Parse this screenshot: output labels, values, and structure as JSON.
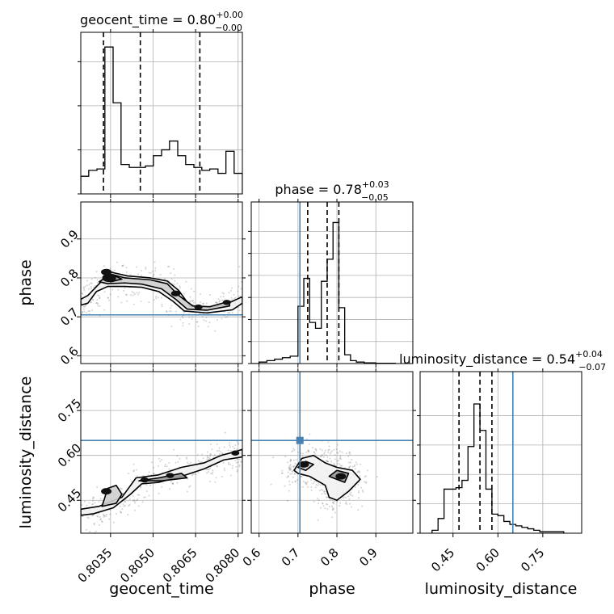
{
  "chart_data": {
    "type": "corner",
    "parameters": [
      "geocent_time",
      "phase",
      "luminosity_distance"
    ],
    "truth_color": "#4682b4",
    "truths": {
      "phase": 0.705,
      "luminosity_distance": 0.65
    },
    "axis_labels": [
      "geocent_time",
      "phase",
      "luminosity_distance"
    ],
    "titles": [
      {
        "base": "geocent_time = 0.80",
        "sup": "+0.00",
        "sub": "−0.00"
      },
      {
        "base": "phase = 0.78",
        "sup": "+0.03",
        "sub": "−0.05"
      },
      {
        "base": "luminosity_distance = 0.54",
        "sup": "+0.04",
        "sub": "−0.07"
      }
    ],
    "ranges": {
      "geocent_time": [
        0.80245,
        0.80815
      ],
      "phase": [
        0.58,
        0.995
      ],
      "luminosity_distance": [
        0.34,
        0.88
      ]
    },
    "ticks": {
      "geocent_time": {
        "values": [
          0.8035,
          0.805,
          0.8065,
          0.808
        ],
        "labels": [
          "0.8035",
          "0.8050",
          "0.8065",
          "0.8080"
        ]
      },
      "phase": {
        "values": [
          0.6,
          0.7,
          0.8,
          0.9
        ],
        "labels": [
          "0.6",
          "0.7",
          "0.8",
          "0.9"
        ]
      },
      "luminosity_distance": {
        "values": [
          0.45,
          0.6,
          0.75
        ],
        "labels": [
          "0.45",
          "0.60",
          "0.75"
        ]
      }
    },
    "quantiles": {
      "geocent_time": [
        0.80325,
        0.80455,
        0.80665
      ],
      "phase": [
        0.725,
        0.775,
        0.805
      ],
      "luminosity_distance": [
        0.47,
        0.54,
        0.58
      ]
    },
    "histograms": {
      "geocent_time": {
        "edges": [
          0.80245,
          0.80273,
          0.80302,
          0.8033,
          0.80359,
          0.80387,
          0.80416,
          0.80444,
          0.80473,
          0.80501,
          0.8053,
          0.80558,
          0.80587,
          0.80615,
          0.80644,
          0.80672,
          0.807,
          0.80729,
          0.80757,
          0.80786,
          0.80815
        ],
        "counts": [
          0.12,
          0.16,
          0.17,
          1.0,
          0.62,
          0.2,
          0.18,
          0.18,
          0.19,
          0.26,
          0.3,
          0.36,
          0.26,
          0.2,
          0.18,
          0.16,
          0.17,
          0.14,
          0.29,
          0.14
        ],
        "yticks": [
          0.0,
          0.3,
          0.6,
          0.9
        ]
      },
      "phase": {
        "edges": [
          0.58,
          0.6,
          0.62,
          0.64,
          0.66,
          0.68,
          0.7,
          0.715,
          0.73,
          0.745,
          0.76,
          0.775,
          0.79,
          0.805,
          0.82,
          0.835,
          0.85,
          0.87,
          0.9,
          0.95
        ],
        "counts": [
          0.0,
          0.01,
          0.02,
          0.03,
          0.04,
          0.05,
          0.39,
          0.58,
          0.28,
          0.24,
          0.56,
          0.71,
          0.96,
          0.38,
          0.06,
          0.02,
          0.01,
          0.005,
          0.002
        ],
        "yticks": [
          0.0,
          0.15,
          0.3,
          0.45,
          0.6,
          0.75,
          0.9
        ]
      },
      "luminosity_distance": {
        "edges": [
          0.38,
          0.4,
          0.42,
          0.44,
          0.46,
          0.48,
          0.5,
          0.52,
          0.54,
          0.56,
          0.58,
          0.6,
          0.62,
          0.64,
          0.66,
          0.68,
          0.7,
          0.72,
          0.74,
          0.76,
          0.78,
          0.82
        ],
        "counts": [
          0.02,
          0.1,
          0.3,
          0.3,
          0.31,
          0.36,
          0.59,
          0.88,
          0.7,
          0.3,
          0.13,
          0.12,
          0.08,
          0.06,
          0.05,
          0.04,
          0.03,
          0.02,
          0.01,
          0.01,
          0.01
        ],
        "yticks": [
          0.0,
          0.2,
          0.4,
          0.6,
          0.8
        ]
      }
    },
    "contours": [
      {
        "x": "geocent_time",
        "y": "phase",
        "levels": [
          [
            [
              0.80245,
              0.745
            ],
            [
              0.8027,
              0.755
            ],
            [
              0.8031,
              0.785
            ],
            [
              0.8035,
              0.815
            ],
            [
              0.8041,
              0.805
            ],
            [
              0.8049,
              0.8
            ],
            [
              0.8055,
              0.792
            ],
            [
              0.8059,
              0.768
            ],
            [
              0.8063,
              0.728
            ],
            [
              0.8068,
              0.723
            ],
            [
              0.8075,
              0.73
            ],
            [
              0.8081,
              0.75
            ],
            [
              0.80815,
              0.75
            ],
            [
              0.80815,
              0.735
            ],
            [
              0.8078,
              0.718
            ],
            [
              0.8069,
              0.71
            ],
            [
              0.8061,
              0.715
            ],
            [
              0.8057,
              0.74
            ],
            [
              0.8052,
              0.765
            ],
            [
              0.8046,
              0.776
            ],
            [
              0.804,
              0.778
            ],
            [
              0.8034,
              0.778
            ],
            [
              0.803,
              0.765
            ],
            [
              0.8027,
              0.735
            ],
            [
              0.80245,
              0.73
            ]
          ],
          [
            [
              0.8031,
              0.79
            ],
            [
              0.8035,
              0.81
            ],
            [
              0.804,
              0.8
            ],
            [
              0.8049,
              0.795
            ],
            [
              0.8055,
              0.785
            ],
            [
              0.8059,
              0.755
            ],
            [
              0.8064,
              0.728
            ],
            [
              0.807,
              0.726
            ],
            [
              0.8077,
              0.74
            ],
            [
              0.8077,
              0.728
            ],
            [
              0.8069,
              0.717
            ],
            [
              0.8062,
              0.72
            ],
            [
              0.8058,
              0.745
            ],
            [
              0.8053,
              0.772
            ],
            [
              0.8046,
              0.784
            ],
            [
              0.804,
              0.787
            ],
            [
              0.8034,
              0.785
            ]
          ],
          [
            [
              0.8033,
              0.8
            ],
            [
              0.8036,
              0.807
            ],
            [
              0.8039,
              0.797
            ],
            [
              0.8035,
              0.79
            ]
          ]
        ],
        "blobs": [
          [
            0.80345,
            0.8,
            0.8
          ],
          [
            0.80335,
            0.815,
            0.5
          ],
          [
            0.8058,
            0.76,
            0.4
          ],
          [
            0.8066,
            0.725,
            0.3
          ],
          [
            0.8076,
            0.737,
            0.3
          ]
        ]
      },
      {
        "x": "geocent_time",
        "y": "luminosity_distance",
        "levels": [
          [
            [
              0.80245,
              0.42
            ],
            [
              0.8031,
              0.43
            ],
            [
              0.8039,
              0.46
            ],
            [
              0.8044,
              0.525
            ],
            [
              0.8052,
              0.535
            ],
            [
              0.806,
              0.56
            ],
            [
              0.8068,
              0.575
            ],
            [
              0.8074,
              0.6
            ],
            [
              0.8078,
              0.61
            ],
            [
              0.80815,
              0.62
            ],
            [
              0.80815,
              0.595
            ],
            [
              0.8075,
              0.585
            ],
            [
              0.8068,
              0.555
            ],
            [
              0.806,
              0.53
            ],
            [
              0.8052,
              0.51
            ],
            [
              0.8046,
              0.505
            ],
            [
              0.8042,
              0.47
            ],
            [
              0.8036,
              0.425
            ],
            [
              0.8029,
              0.405
            ],
            [
              0.80245,
              0.4
            ]
          ],
          [
            [
              0.8032,
              0.43
            ],
            [
              0.8034,
              0.49
            ],
            [
              0.8037,
              0.5
            ],
            [
              0.8039,
              0.47
            ],
            [
              0.8037,
              0.44
            ]
          ],
          [
            [
              0.8045,
              0.515
            ],
            [
              0.8052,
              0.525
            ],
            [
              0.806,
              0.54
            ],
            [
              0.8062,
              0.525
            ],
            [
              0.8053,
              0.515
            ]
          ]
        ],
        "blobs": [
          [
            0.80335,
            0.48,
            0.5
          ],
          [
            0.8047,
            0.518,
            0.3
          ],
          [
            0.8056,
            0.533,
            0.3
          ],
          [
            0.8079,
            0.608,
            0.3
          ]
        ]
      },
      {
        "x": "phase",
        "y": "luminosity_distance",
        "levels": [
          [
            [
              0.69,
              0.55
            ],
            [
              0.71,
              0.59
            ],
            [
              0.74,
              0.6
            ],
            [
              0.77,
              0.575
            ],
            [
              0.8,
              0.56
            ],
            [
              0.84,
              0.55
            ],
            [
              0.86,
              0.52
            ],
            [
              0.83,
              0.48
            ],
            [
              0.8,
              0.45
            ],
            [
              0.78,
              0.46
            ],
            [
              0.77,
              0.5
            ],
            [
              0.73,
              0.53
            ],
            [
              0.7,
              0.54
            ]
          ],
          [
            [
              0.7,
              0.56
            ],
            [
              0.72,
              0.58
            ],
            [
              0.74,
              0.57
            ],
            [
              0.72,
              0.55
            ]
          ],
          [
            [
              0.78,
              0.53
            ],
            [
              0.8,
              0.55
            ],
            [
              0.83,
              0.54
            ],
            [
              0.82,
              0.51
            ],
            [
              0.8,
              0.52
            ]
          ]
        ],
        "blobs": [
          [
            0.715,
            0.57,
            0.5
          ],
          [
            0.81,
            0.53,
            0.5
          ]
        ]
      }
    ]
  }
}
